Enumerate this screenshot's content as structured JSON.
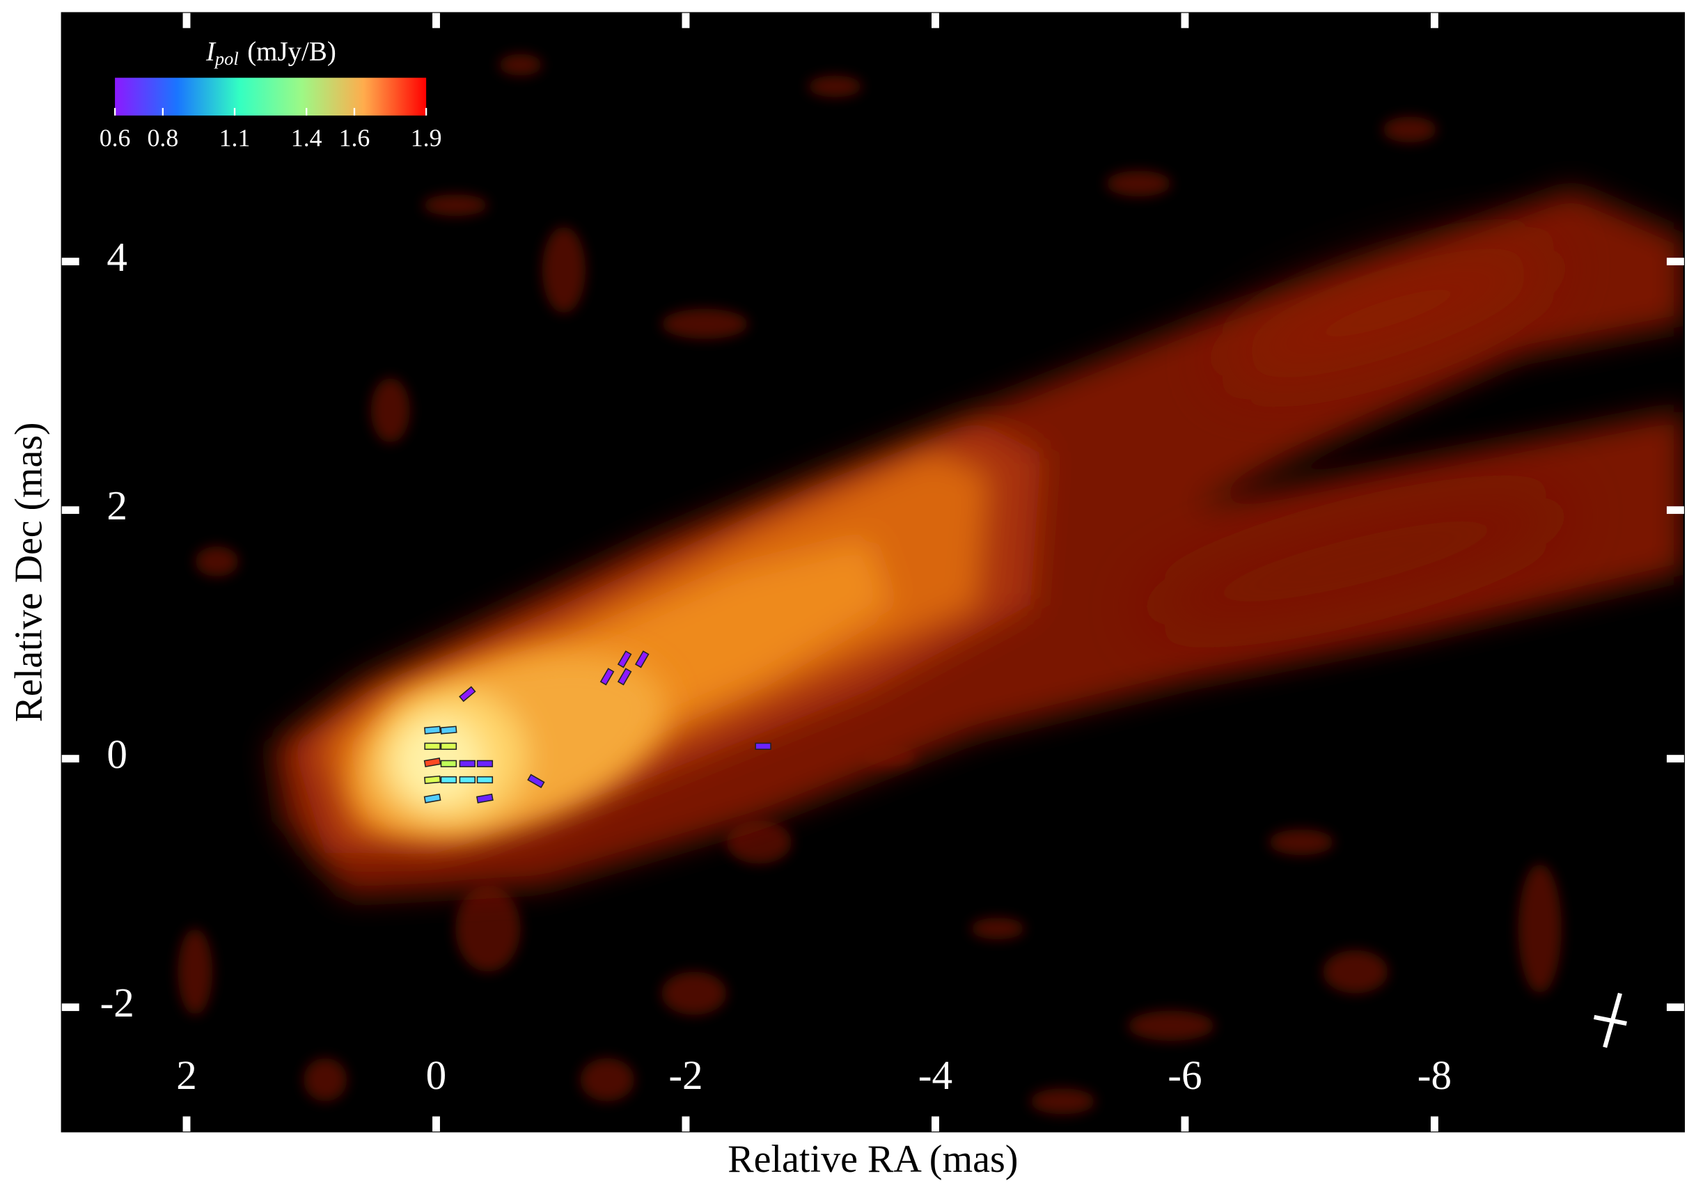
{
  "chart_data": {
    "type": "image",
    "xlabel": "Relative RA (mas)",
    "ylabel": "Relative Dec (mas)",
    "xlim": [
      3,
      -10
    ],
    "ylim": [
      -3,
      6
    ],
    "xticks": [
      2,
      0,
      -2,
      -4,
      -6,
      -8
    ],
    "yticks": [
      -2,
      0,
      2,
      4
    ],
    "colorbar": {
      "symbol": "I",
      "subscript": "pol",
      "unit": "(mJy/B)",
      "lim": [
        0.6,
        1.9
      ],
      "ticks": [
        0.6,
        0.8,
        1.1,
        1.4,
        1.6,
        1.9
      ]
    },
    "vectors": {
      "x": [
        -0.25,
        0.03,
        -0.1,
        0.03,
        -0.1,
        0.03,
        -0.1,
        -0.25,
        -0.39,
        0.03,
        -0.1,
        -0.25,
        -0.39,
        0.03,
        -0.39,
        -0.8,
        -1.37,
        -1.51,
        -1.51,
        -1.65,
        -2.62
      ],
      "y": [
        0.52,
        0.23,
        0.23,
        0.1,
        0.1,
        -0.03,
        -0.04,
        -0.04,
        -0.04,
        -0.17,
        -0.17,
        -0.17,
        -0.17,
        -0.32,
        -0.32,
        -0.18,
        0.66,
        0.8,
        0.66,
        0.8,
        0.1
      ],
      "ipol": [
        0.6,
        0.95,
        0.95,
        1.55,
        1.55,
        1.85,
        1.5,
        0.65,
        0.65,
        1.55,
        1.0,
        1.0,
        1.0,
        0.95,
        0.65,
        0.65,
        0.6,
        0.6,
        0.6,
        0.6,
        0.65
      ],
      "angle": [
        40,
        5,
        5,
        0,
        0,
        10,
        0,
        0,
        0,
        5,
        0,
        0,
        0,
        10,
        10,
        -30,
        60,
        60,
        60,
        60,
        0
      ]
    }
  }
}
